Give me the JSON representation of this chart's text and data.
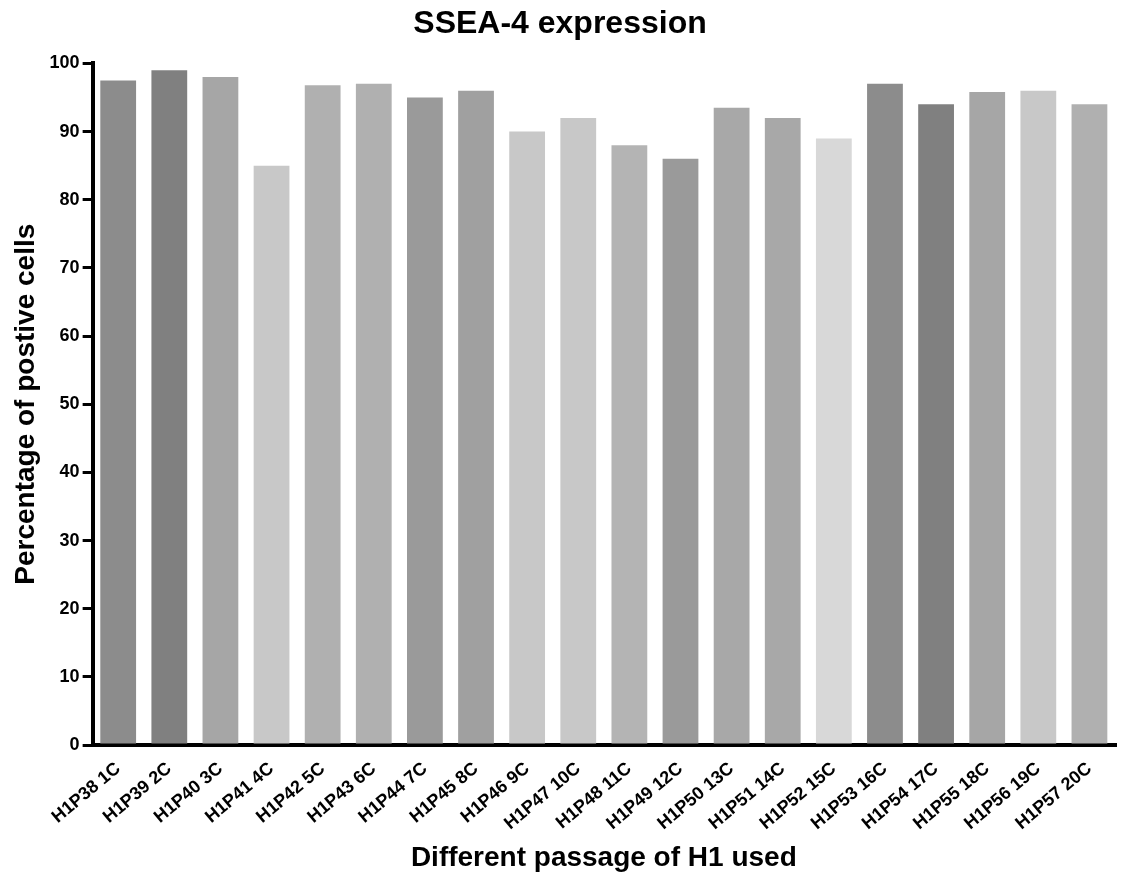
{
  "chart_data": {
    "type": "bar",
    "title": "SSEA-4 expression",
    "xlabel": "Different passage of H1 used",
    "ylabel": "Percentage of postive cells",
    "categories": [
      "H1P38 1C",
      "H1P39 2C",
      "H1P40 3C",
      "H1P41 4C",
      "H1P42 5C",
      "H1P43 6C",
      "H1P44 7C",
      "H1P45 8C",
      "H1P46 9C",
      "H1P47 10C",
      "H1P48 11C",
      "H1P49 12C",
      "H1P50 13C",
      "H1P51 14C",
      "H1P52 15C",
      "H1P53 16C",
      "H1P54 17C",
      "H1P55 18C",
      "H1P56 19C",
      "H1P57 20C"
    ],
    "values": [
      97.5,
      99,
      98,
      85,
      96.8,
      97,
      95,
      96,
      90,
      92,
      88,
      86,
      93.5,
      92,
      89,
      97,
      94,
      95.8,
      96,
      94
    ],
    "colors": [
      "#8c8c8c",
      "#808080",
      "#a6a6a6",
      "#c8c8c8",
      "#b0b0b0",
      "#b0b0b0",
      "#9a9a9a",
      "#a0a0a0",
      "#c8c8c8",
      "#c8c8c8",
      "#b4b4b4",
      "#9a9a9a",
      "#a8a8a8",
      "#a8a8a8",
      "#d8d8d8",
      "#8c8c8c",
      "#808080",
      "#a6a6a6",
      "#c8c8c8",
      "#b0b0b0"
    ],
    "ylim": [
      0,
      100
    ],
    "yticks": [
      0,
      10,
      20,
      30,
      40,
      50,
      60,
      70,
      80,
      90,
      100
    ],
    "grid": false,
    "legend": false
  }
}
